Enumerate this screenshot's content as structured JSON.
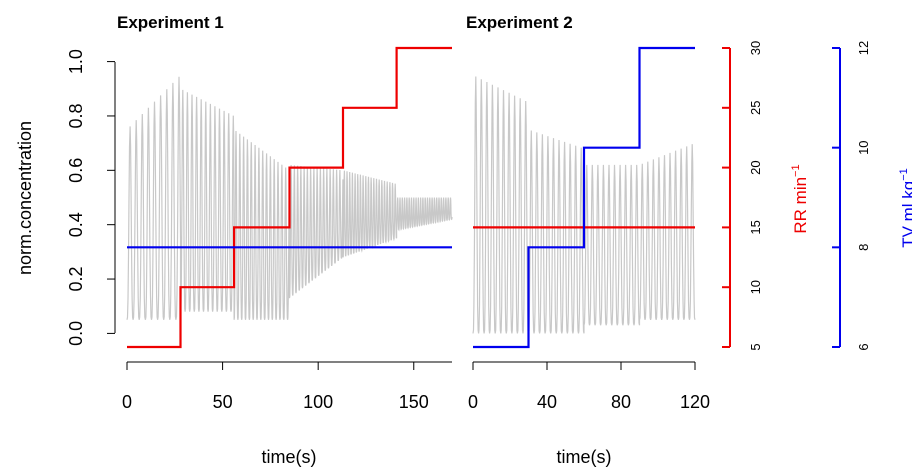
{
  "chart_data": [
    {
      "type": "line",
      "title": "Experiment 1",
      "xlabel": "time(s)",
      "ylabel": "norm.concentration",
      "xlim": [
        0,
        170
      ],
      "ylim": [
        -0.05,
        1.05
      ],
      "x_ticks": [
        "0",
        "50",
        "100",
        "150"
      ],
      "y_ticks": [
        "0.0",
        "0.2",
        "0.4",
        "0.6",
        "0.8",
        "1.0"
      ],
      "grid": false,
      "series": [
        {
          "role": "concentration",
          "color": "#c8c8c8",
          "oscillation": {
            "segments": [
              {
                "t": [
                  0,
                  28
                ],
                "period": 3.2,
                "peak": [
                  0.75,
                  0.95
                ],
                "trough": 0.05
              },
              {
                "t": [
                  28,
                  56
                ],
                "period": 2.4,
                "peak": [
                  0.9,
                  0.8
                ],
                "trough": 0.08
              },
              {
                "t": [
                  56,
                  85
                ],
                "period": 2.0,
                "peak": [
                  0.75,
                  0.6
                ],
                "trough": 0.05
              },
              {
                "t": [
                  85,
                  113
                ],
                "period": 1.7,
                "peak": [
                  0.62,
                  0.6
                ],
                "trough": [
                  0.13,
                  0.28
                ]
              },
              {
                "t": [
                  113,
                  141
                ],
                "period": 1.4,
                "peak": [
                  0.6,
                  0.55
                ],
                "trough": [
                  0.28,
                  0.35
                ]
              },
              {
                "t": [
                  141,
                  170
                ],
                "period": 1.2,
                "peak": [
                  0.5,
                  0.5
                ],
                "trough": [
                  0.38,
                  0.42
                ]
              }
            ]
          }
        },
        {
          "role": "respiratory rate",
          "axis": "right-red",
          "color": "#ee0000",
          "x": [
            0,
            28,
            28,
            56,
            56,
            85,
            85,
            113,
            113,
            141,
            141,
            170
          ],
          "y": [
            5,
            5,
            10,
            10,
            15,
            15,
            20,
            20,
            25,
            25,
            30,
            30
          ]
        },
        {
          "role": "tidal volume",
          "axis": "right-blue",
          "color": "#0000ee",
          "x": [
            0,
            170
          ],
          "y": [
            8,
            8
          ]
        }
      ]
    },
    {
      "type": "line",
      "title": "Experiment 2",
      "xlabel": "time(s)",
      "xlim": [
        0,
        120
      ],
      "x_ticks": [
        "0",
        "40",
        "80",
        "120"
      ],
      "series": [
        {
          "role": "concentration",
          "color": "#c8c8c8",
          "oscillation": {
            "segments": [
              {
                "t": [
                  0,
                  30
                ],
                "period": 3.0,
                "peak": [
                  0.95,
                  0.85
                ],
                "trough": 0.0
              },
              {
                "t": [
                  30,
                  60
                ],
                "period": 3.0,
                "peak": [
                  0.75,
                  0.68
                ],
                "trough": 0.0
              },
              {
                "t": [
                  60,
                  90
                ],
                "period": 3.0,
                "peak": [
                  0.62,
                  0.62
                ],
                "trough": 0.03
              },
              {
                "t": [
                  90,
                  120
                ],
                "period": 3.0,
                "peak": [
                  0.62,
                  0.7
                ],
                "trough": 0.05
              }
            ]
          }
        },
        {
          "role": "respiratory rate",
          "axis": "right-red",
          "color": "#ee0000",
          "x": [
            0,
            120
          ],
          "y": [
            15,
            15
          ]
        },
        {
          "role": "tidal volume",
          "axis": "right-blue",
          "color": "#0000ee",
          "x": [
            0,
            30,
            30,
            60,
            60,
            90,
            90,
            120
          ],
          "y": [
            6,
            6,
            8,
            8,
            10,
            10,
            12,
            12
          ]
        }
      ]
    }
  ],
  "right_axes": [
    {
      "name": "red",
      "label": "RR min",
      "superscript": "−1",
      "color": "#ee0000",
      "lim": [
        5,
        30
      ],
      "ticks": [
        "5",
        "10",
        "15",
        "20",
        "25",
        "30"
      ]
    },
    {
      "name": "blue",
      "label": "TV ml kg",
      "superscript": "−1",
      "color": "#0000ee",
      "lim": [
        6,
        12
      ],
      "ticks": [
        "6",
        "8",
        "10",
        "12"
      ]
    }
  ]
}
